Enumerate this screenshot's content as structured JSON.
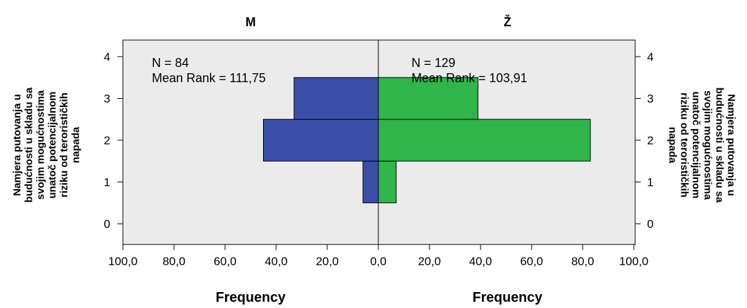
{
  "chart_data": {
    "type": "bar",
    "orientation": "horizontal",
    "layout": "back-to-back population pyramid",
    "categories": [
      "0",
      "1",
      "2",
      "3",
      "4"
    ],
    "panels": [
      {
        "name": "M",
        "color": "#3a4ea9",
        "n_label": "N = 84",
        "mean_rank_label": "Mean Rank = 111,75"
      },
      {
        "name": "Ž",
        "color": "#2fb54a",
        "n_label": "N = 129",
        "mean_rank_label": "Mean Rank = 103,91"
      }
    ],
    "series": [
      {
        "name": "M",
        "values": [
          0,
          6,
          45,
          33,
          0
        ]
      },
      {
        "name": "Ž",
        "values": [
          0,
          7,
          83,
          39,
          0
        ]
      }
    ],
    "x_tick_labels": [
      "100,0",
      "80,0",
      "60,0",
      "40,0",
      "20,0",
      "0,0",
      "20,0",
      "40,0",
      "60,0",
      "80,0",
      "100,0"
    ],
    "xlim": [
      0,
      100
    ],
    "y_tick_labels": [
      "0",
      "1",
      "2",
      "3",
      "4"
    ],
    "xlabel": "Frequency",
    "ylabel": "Namjera putovanja u budućnosti u skladu sa svojim mogućnostima unatoč potencijalnom riziku od terorističkih napada",
    "ylabel_lines": [
      "Namjera putovanja u",
      "budućnosti u skladu sa",
      "svojim mogućnostima",
      "unatoč potencijalnom",
      "riziku od terorističkih",
      "napada"
    ],
    "plot_background": "#ebebeb",
    "grid": false
  }
}
